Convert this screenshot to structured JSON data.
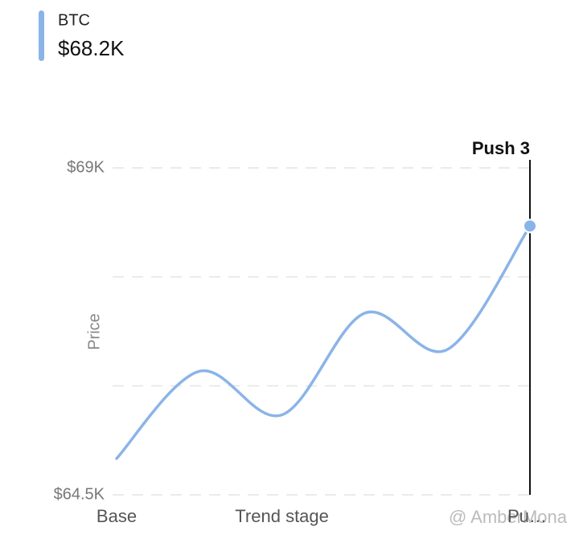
{
  "chart_data": {
    "type": "line",
    "y_label": "Price",
    "categories": [
      "Base",
      null,
      "Trend stage",
      null,
      null,
      "Push 3"
    ],
    "series": [
      {
        "name": "BTC",
        "color": "#8ab4e8",
        "values": [
          65000,
          66200,
          65600,
          67000,
          66500,
          68200
        ],
        "value_labels": [
          null,
          null,
          null,
          null,
          null,
          "$68.2K"
        ]
      }
    ],
    "ylim": [
      64500,
      69000
    ],
    "yticks": [
      {
        "value": 64500,
        "label": "$64.5K"
      },
      {
        "value": 66000,
        "label": null
      },
      {
        "value": 67500,
        "label": null
      },
      {
        "value": 69000,
        "label": "$69K"
      }
    ],
    "grid": true,
    "watermark": "@ AmberMona"
  }
}
